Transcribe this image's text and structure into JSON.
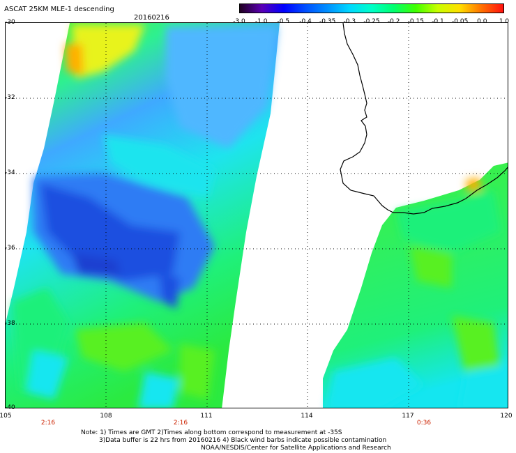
{
  "header": {
    "title": "ASCAT 25KM MLE-1 descending",
    "date": "20160216"
  },
  "colorbar": {
    "ticks": [
      "-3.0",
      "-1.0",
      "-0.5",
      "-0.4",
      "-0.35",
      "-0.3",
      "-0.25",
      "-0.2",
      "-0.15",
      "-0.1",
      "-0.05",
      "0.0",
      "1.0"
    ],
    "colors": [
      "#200020",
      "#5a00b4",
      "#0000ff",
      "#0050ff",
      "#0090ff",
      "#00d8ff",
      "#00ffc8",
      "#00ff70",
      "#40ff00",
      "#c8ff00",
      "#ffe000",
      "#ff7000",
      "#ff1010"
    ]
  },
  "axes": {
    "lat_labels": [
      "-30",
      "-32",
      "-34",
      "-36",
      "-38",
      "-40"
    ],
    "lon_labels": [
      "105",
      "108",
      "111",
      "114",
      "117",
      "120"
    ]
  },
  "times": [
    "2:16",
    "2:16",
    "0:36"
  ],
  "notes": [
    "Note: 1) Times are GMT 2)Times along bottom correspond to measurement at -35S",
    "3)Data buffer is 22 hrs from 20160216 4) Black wind barbs indicate possible contamination",
    "NOAA/NESDIS/Center for Satellite Applications and Research"
  ],
  "map": {
    "region": "Western Australia coastline",
    "swath_colors": {
      "low": "#1f4fe0",
      "blue": "#2f7cf4",
      "lightblue": "#4fb7ff",
      "cyan": "#14e6f0",
      "green": "#1ff07a",
      "lime": "#58f020",
      "yellow": "#e8f31a",
      "orange": "#ffb000"
    }
  }
}
